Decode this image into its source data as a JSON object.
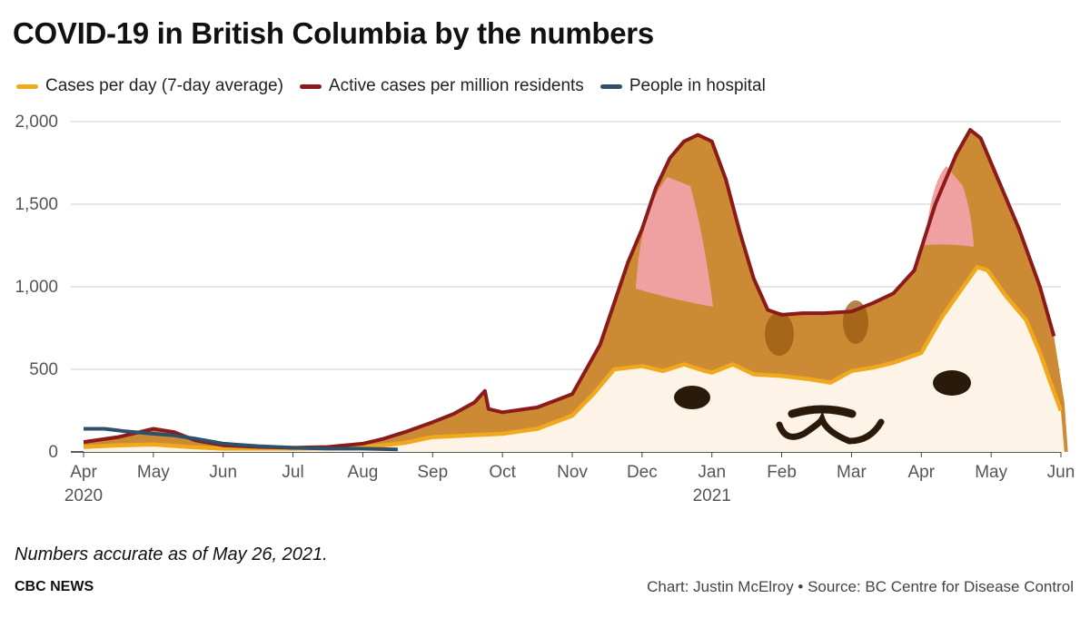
{
  "title": "COVID-19 in British Columbia by the numbers",
  "note": "Numbers accurate as of May 26, 2021.",
  "brand": "CBC NEWS",
  "credit": "Chart: Justin McElroy • Source: BC Centre for Disease Control",
  "colors": {
    "cases": "#f0a81c",
    "active": "#8b1a1a",
    "hospital": "#2f4f6a",
    "fill_outer": "#cc8a35",
    "fill_inner": "#fdf3e6",
    "ear": "#f0a0a0",
    "marking": "#9a5a10",
    "face": "#2a1a0a",
    "grid": "#cccccc"
  },
  "chart_data": {
    "type": "area",
    "title": "COVID-19 in British Columbia by the numbers",
    "xlabel": "",
    "ylabel": "",
    "ylim": [
      0,
      2000
    ],
    "grid": true,
    "legend_position": "top-left",
    "y_ticks": [
      {
        "value": 0,
        "label": "0"
      },
      {
        "value": 500,
        "label": "500"
      },
      {
        "value": 1000,
        "label": "1,000"
      },
      {
        "value": 1500,
        "label": "1,500"
      },
      {
        "value": 2000,
        "label": "2,000"
      }
    ],
    "x_ticks": [
      {
        "t": 0,
        "label": "Apr",
        "year": "2020"
      },
      {
        "t": 1,
        "label": "May"
      },
      {
        "t": 2,
        "label": "Jun"
      },
      {
        "t": 3,
        "label": "Jul"
      },
      {
        "t": 4,
        "label": "Aug"
      },
      {
        "t": 5,
        "label": "Sep"
      },
      {
        "t": 6,
        "label": "Oct"
      },
      {
        "t": 7,
        "label": "Nov"
      },
      {
        "t": 8,
        "label": "Dec"
      },
      {
        "t": 9,
        "label": "Jan",
        "year": "2021"
      },
      {
        "t": 10,
        "label": "Feb"
      },
      {
        "t": 11,
        "label": "Mar"
      },
      {
        "t": 12,
        "label": "Apr"
      },
      {
        "t": 13,
        "label": "May"
      },
      {
        "t": 14,
        "label": "Jun"
      }
    ],
    "series": [
      {
        "name": "Cases per day (7-day average)",
        "points": [
          [
            0,
            30
          ],
          [
            0.5,
            40
          ],
          [
            1,
            45
          ],
          [
            1.5,
            30
          ],
          [
            2,
            20
          ],
          [
            3,
            20
          ],
          [
            3.5,
            22
          ],
          [
            4,
            30
          ],
          [
            4.3,
            40
          ],
          [
            4.6,
            55
          ],
          [
            5,
            90
          ],
          [
            5.5,
            100
          ],
          [
            6,
            110
          ],
          [
            6.5,
            140
          ],
          [
            7,
            220
          ],
          [
            7.3,
            350
          ],
          [
            7.6,
            500
          ],
          [
            8,
            520
          ],
          [
            8.3,
            490
          ],
          [
            8.6,
            530
          ],
          [
            8.9,
            490
          ],
          [
            9,
            480
          ],
          [
            9.3,
            530
          ],
          [
            9.6,
            470
          ],
          [
            10,
            460
          ],
          [
            10.4,
            440
          ],
          [
            10.7,
            420
          ],
          [
            11,
            490
          ],
          [
            11.3,
            510
          ],
          [
            11.6,
            540
          ],
          [
            12,
            600
          ],
          [
            12.3,
            820
          ],
          [
            12.6,
            1000
          ],
          [
            12.8,
            1120
          ],
          [
            12.95,
            1100
          ],
          [
            13.2,
            950
          ],
          [
            13.5,
            800
          ],
          [
            13.7,
            600
          ],
          [
            13.85,
            420
          ],
          [
            14,
            250
          ]
        ]
      },
      {
        "name": "Active cases per million residents",
        "points": [
          [
            0,
            60
          ],
          [
            0.5,
            90
          ],
          [
            0.8,
            120
          ],
          [
            1,
            140
          ],
          [
            1.3,
            120
          ],
          [
            1.6,
            70
          ],
          [
            2,
            40
          ],
          [
            2.5,
            30
          ],
          [
            3,
            25
          ],
          [
            3.5,
            30
          ],
          [
            4,
            50
          ],
          [
            4.3,
            80
          ],
          [
            4.6,
            120
          ],
          [
            5,
            180
          ],
          [
            5.3,
            230
          ],
          [
            5.6,
            300
          ],
          [
            5.75,
            370
          ],
          [
            5.8,
            260
          ],
          [
            6,
            240
          ],
          [
            6.5,
            270
          ],
          [
            7,
            350
          ],
          [
            7.2,
            500
          ],
          [
            7.4,
            650
          ],
          [
            7.6,
            900
          ],
          [
            7.8,
            1150
          ],
          [
            8,
            1350
          ],
          [
            8.2,
            1600
          ],
          [
            8.4,
            1780
          ],
          [
            8.6,
            1880
          ],
          [
            8.8,
            1920
          ],
          [
            9,
            1880
          ],
          [
            9.2,
            1650
          ],
          [
            9.4,
            1330
          ],
          [
            9.6,
            1050
          ],
          [
            9.8,
            860
          ],
          [
            10,
            830
          ],
          [
            10.3,
            840
          ],
          [
            10.6,
            840
          ],
          [
            11,
            850
          ],
          [
            11.3,
            900
          ],
          [
            11.6,
            960
          ],
          [
            11.9,
            1100
          ],
          [
            12.2,
            1500
          ],
          [
            12.5,
            1800
          ],
          [
            12.7,
            1950
          ],
          [
            12.85,
            1900
          ],
          [
            13.1,
            1650
          ],
          [
            13.4,
            1350
          ],
          [
            13.7,
            1000
          ],
          [
            13.9,
            700
          ]
        ]
      },
      {
        "name": "People in hospital",
        "points": [
          [
            0,
            140
          ],
          [
            0.3,
            140
          ],
          [
            0.6,
            125
          ],
          [
            1,
            110
          ],
          [
            1.3,
            100
          ],
          [
            1.6,
            80
          ],
          [
            2,
            50
          ],
          [
            2.5,
            35
          ],
          [
            3,
            25
          ],
          [
            3.5,
            20
          ],
          [
            4,
            20
          ],
          [
            4.5,
            15
          ]
        ]
      }
    ]
  }
}
